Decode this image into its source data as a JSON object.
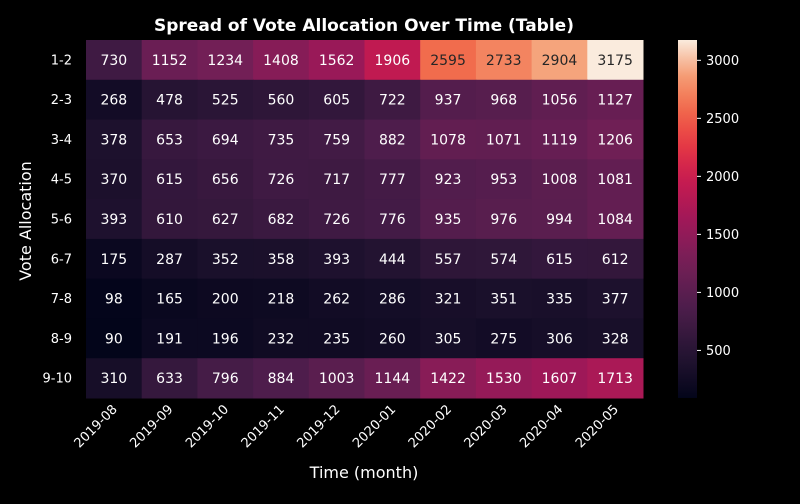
{
  "chart_data": {
    "type": "heatmap",
    "title": "Spread of Vote Allocation Over Time (Table)",
    "xlabel": "Time (month)",
    "ylabel": "Vote Allocation",
    "x_categories": [
      "2019-08",
      "2019-09",
      "2019-10",
      "2019-11",
      "2019-12",
      "2020-01",
      "2020-02",
      "2020-03",
      "2020-04",
      "2020-05"
    ],
    "y_categories": [
      "1-2",
      "2-3",
      "3-4",
      "4-5",
      "5-6",
      "6-7",
      "7-8",
      "8-9",
      "9-10"
    ],
    "values": [
      [
        730,
        1152,
        1234,
        1408,
        1562,
        1906,
        2595,
        2733,
        2904,
        3175
      ],
      [
        268,
        478,
        525,
        560,
        605,
        722,
        937,
        968,
        1056,
        1127
      ],
      [
        378,
        653,
        694,
        735,
        759,
        882,
        1078,
        1071,
        1119,
        1206
      ],
      [
        370,
        615,
        656,
        726,
        717,
        777,
        923,
        953,
        1008,
        1081
      ],
      [
        393,
        610,
        627,
        682,
        726,
        776,
        935,
        976,
        994,
        1084
      ],
      [
        175,
        287,
        352,
        358,
        393,
        444,
        557,
        574,
        615,
        612
      ],
      [
        98,
        165,
        200,
        218,
        262,
        286,
        321,
        351,
        335,
        377
      ],
      [
        90,
        191,
        196,
        232,
        235,
        260,
        305,
        275,
        306,
        328
      ],
      [
        310,
        633,
        796,
        884,
        1003,
        1144,
        1422,
        1530,
        1607,
        1713
      ]
    ],
    "colorbar": {
      "colormap": "rocket",
      "vmin": 90,
      "vmax": 3175,
      "ticks": [
        500,
        1000,
        1500,
        2000,
        2500,
        3000
      ]
    },
    "background_color": "#000000",
    "text_color": "#ffffff",
    "grid": false
  }
}
